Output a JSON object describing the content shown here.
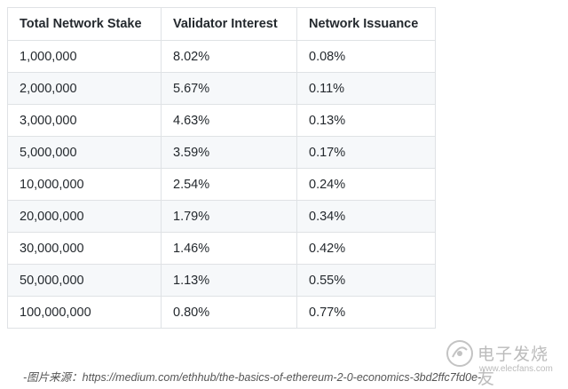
{
  "table": {
    "headers": [
      "Total Network Stake",
      "Validator Interest",
      "Network Issuance"
    ],
    "rows": [
      [
        "1,000,000",
        "8.02%",
        "0.08%"
      ],
      [
        "2,000,000",
        "5.67%",
        "0.11%"
      ],
      [
        "3,000,000",
        "4.63%",
        "0.13%"
      ],
      [
        "5,000,000",
        "3.59%",
        "0.17%"
      ],
      [
        "10,000,000",
        "2.54%",
        "0.24%"
      ],
      [
        "20,000,000",
        "1.79%",
        "0.34%"
      ],
      [
        "30,000,000",
        "1.46%",
        "0.42%"
      ],
      [
        "50,000,000",
        "1.13%",
        "0.55%"
      ],
      [
        "100,000,000",
        "0.80%",
        "0.77%"
      ]
    ]
  },
  "caption": "-图片来源：https://medium.com/ethhub/the-basics-of-ethereum-2-0-economics-3bd2ffc7fd0e-",
  "watermark": {
    "text": "电子发烧友",
    "url": "www.elecfans.com",
    "color": "#aaaaaa"
  }
}
